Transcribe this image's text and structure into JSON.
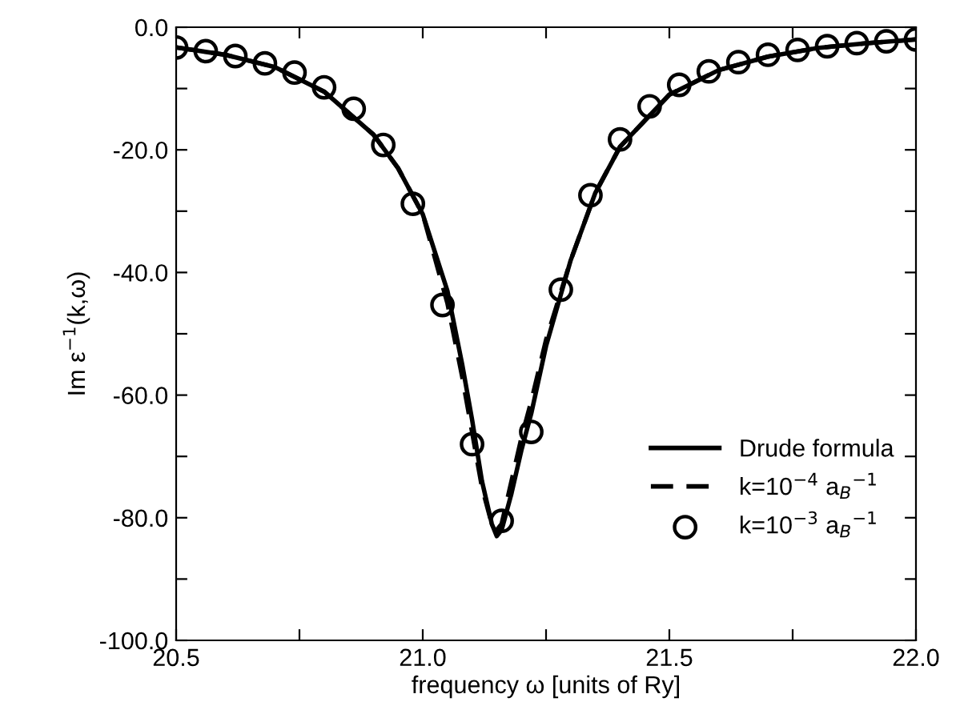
{
  "chart_data": {
    "type": "line",
    "xlabel": "frequency ω [units of Ry]",
    "ylabel": "Im ε$^{−1}$(k,ω)",
    "xlim": [
      20.5,
      22.0
    ],
    "ylim": [
      -100,
      0
    ],
    "xticks": [
      {
        "value": 20.5,
        "label": "20.5"
      },
      {
        "value": 20.75,
        "label": null
      },
      {
        "value": 21.0,
        "label": "21.0"
      },
      {
        "value": 21.25,
        "label": null
      },
      {
        "value": 21.5,
        "label": "21.5"
      },
      {
        "value": 21.75,
        "label": null
      },
      {
        "value": 22.0,
        "label": "22.0"
      }
    ],
    "yticks": [
      {
        "value": -100,
        "label": "-100.0"
      },
      {
        "value": -90,
        "label": null
      },
      {
        "value": -80,
        "label": "-80.0"
      },
      {
        "value": -70,
        "label": null
      },
      {
        "value": -60,
        "label": "-60.0"
      },
      {
        "value": -50,
        "label": null
      },
      {
        "value": -40,
        "label": "-40.0"
      },
      {
        "value": -30,
        "label": null
      },
      {
        "value": -20,
        "label": "-20.0"
      },
      {
        "value": -10,
        "label": null
      },
      {
        "value": 0,
        "label": "0.0"
      }
    ],
    "grid": false,
    "legend": "bottom right",
    "series": [
      {
        "name": "Drude formula",
        "color": "#000000",
        "line_style": "solid",
        "marker": "none",
        "x": [
          20.5,
          20.6,
          20.7,
          20.8,
          20.9,
          20.95,
          21.0,
          21.05,
          21.08,
          21.1,
          21.12,
          21.14,
          21.15,
          21.16,
          21.18,
          21.2,
          21.22,
          21.25,
          21.3,
          21.35,
          21.4,
          21.5,
          21.6,
          21.7,
          21.8,
          21.9,
          22.0
        ],
        "values": [
          -3.3,
          -4.5,
          -6.5,
          -10.5,
          -17.5,
          -23,
          -30.5,
          -43,
          -55,
          -64,
          -74,
          -81,
          -83,
          -82,
          -76,
          -69,
          -63,
          -52,
          -38,
          -27,
          -19.5,
          -11,
          -7,
          -4.8,
          -3.4,
          -2.6,
          -2.0
        ]
      },
      {
        "name": "k=10$^{−4}$ a$_{B}$$^{−1}$",
        "color": "#000000",
        "line_style": "dashed",
        "marker": "none",
        "x": [
          20.5,
          20.6,
          20.7,
          20.8,
          20.9,
          20.95,
          21.0,
          21.05,
          21.08,
          21.1,
          21.12,
          21.14,
          21.15,
          21.16,
          21.18,
          21.2,
          21.22,
          21.25,
          21.3,
          21.35,
          21.4,
          21.5,
          21.6,
          21.7,
          21.8,
          21.9,
          22.0
        ],
        "values": [
          -3.3,
          -4.5,
          -6.5,
          -10.5,
          -17.5,
          -23,
          -30.5,
          -45,
          -57,
          -66,
          -75,
          -81,
          -82,
          -81,
          -74,
          -67,
          -61,
          -51,
          -38,
          -27,
          -19.5,
          -11,
          -7,
          -4.8,
          -3.4,
          -2.6,
          -2.0
        ]
      },
      {
        "name": "k=10$^{−3}$ a$_{B}$$^{−1}$",
        "color": "#000000",
        "type": "scatter",
        "marker": "circle",
        "x": [
          20.5,
          20.56,
          20.62,
          20.68,
          20.74,
          20.8,
          20.86,
          20.92,
          20.98,
          21.04,
          21.1,
          21.16,
          21.22,
          21.28,
          21.34,
          21.4,
          21.46,
          21.52,
          21.58,
          21.64,
          21.7,
          21.76,
          21.82,
          21.88,
          21.94,
          22.0
        ],
        "values": [
          -3.3,
          -3.9,
          -4.7,
          -5.9,
          -7.4,
          -9.8,
          -13.3,
          -19.2,
          -28.8,
          -45.3,
          -68.0,
          -80.5,
          -66,
          -42.8,
          -27.4,
          -18.3,
          -12.9,
          -9.4,
          -7.2,
          -5.7,
          -4.5,
          -3.7,
          -3.1,
          -2.6,
          -2.3,
          -2.0
        ]
      }
    ]
  }
}
